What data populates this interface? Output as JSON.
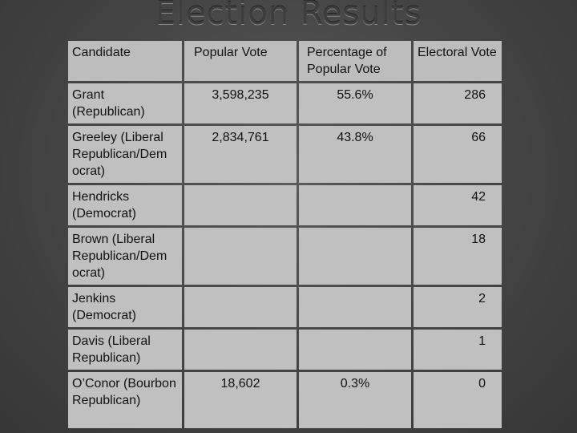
{
  "title": "Election Results",
  "headers": [
    "Candidate",
    "Popular Vote",
    "Percentage of Popular Vote",
    "Electoral Vote"
  ],
  "rows": [
    {
      "candidate": "Grant (Republican)",
      "popular": "3,598,235",
      "percent": "55.6%",
      "electoral": "286"
    },
    {
      "candidate": "Greeley (Liberal Republican/Dem ocrat)",
      "popular": "2,834,761",
      "percent": "43.8%",
      "electoral": "66"
    },
    {
      "candidate": "Hendricks (Democrat)",
      "popular": "",
      "percent": "",
      "electoral": "42"
    },
    {
      "candidate": "Brown (Liberal Republican/Dem ocrat)",
      "popular": "",
      "percent": "",
      "electoral": "18"
    },
    {
      "candidate": "Jenkins (Democrat)",
      "popular": "",
      "percent": "",
      "electoral": "2"
    },
    {
      "candidate": "Davis (Liberal Republican)",
      "popular": "",
      "percent": "",
      "electoral": "1"
    },
    {
      "candidate": "O’Conor (Bourbon Republican)",
      "popular": "18,602",
      "percent": "0.3%",
      "electoral": "0"
    }
  ]
}
